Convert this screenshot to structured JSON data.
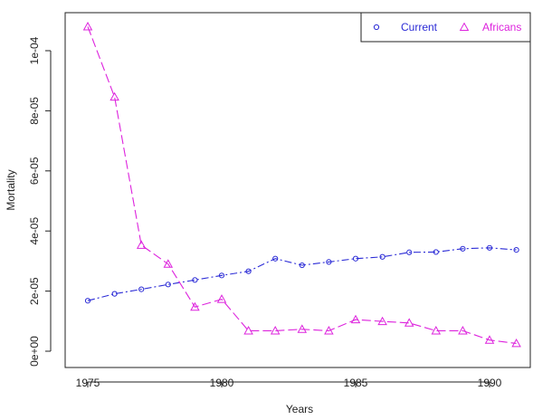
{
  "chart_data": {
    "type": "line",
    "title": "",
    "xlabel": "Years",
    "ylabel": "Mortality",
    "xlim": [
      1974.2,
      1391.2
    ],
    "ylim": [
      -5e-06,
      0.00011
    ],
    "x_ticks": [
      1975,
      1980,
      1985,
      1990
    ],
    "x_tick_labels": [
      "1975",
      "1980",
      "1985",
      "1990"
    ],
    "y_ticks": [
      0.0,
      2e-05,
      4e-05,
      6e-05,
      8e-05,
      0.0001
    ],
    "y_tick_labels": [
      "0e+00",
      "2e-05",
      "4e-05",
      "6e-05",
      "8e-05",
      "1e-04"
    ],
    "grid": false,
    "legend_position": "top-right",
    "x": [
      1975,
      1976,
      1977,
      1978,
      1979,
      1980,
      1981,
      1982,
      1983,
      1984,
      1985,
      1986,
      1987,
      1988,
      1989,
      1990,
      1991
    ],
    "series": [
      {
        "name": "Current",
        "color": "#2b2bd6",
        "marker": "circle",
        "line_style": "dot-dash",
        "values": [
          1.68e-05,
          1.91e-05,
          2.06e-05,
          2.22e-05,
          2.37e-05,
          2.52e-05,
          2.66e-05,
          3.08e-05,
          2.86e-05,
          2.97e-05,
          3.08e-05,
          3.14e-05,
          3.29e-05,
          3.3e-05,
          3.41e-05,
          3.44e-05,
          3.37e-05
        ]
      },
      {
        "name": "Africans",
        "color": "#dd22dd",
        "marker": "triangle",
        "line_style": "dashed",
        "values": [
          0.000108,
          8.46e-05,
          3.53e-05,
          2.9e-05,
          1.47e-05,
          1.73e-05,
          6.8e-06,
          6.8e-06,
          7.3e-06,
          6.8e-06,
          1.05e-05,
          9.9e-06,
          9.4e-06,
          6.8e-06,
          6.8e-06,
          3.7e-06,
          2.6e-06
        ]
      }
    ]
  }
}
